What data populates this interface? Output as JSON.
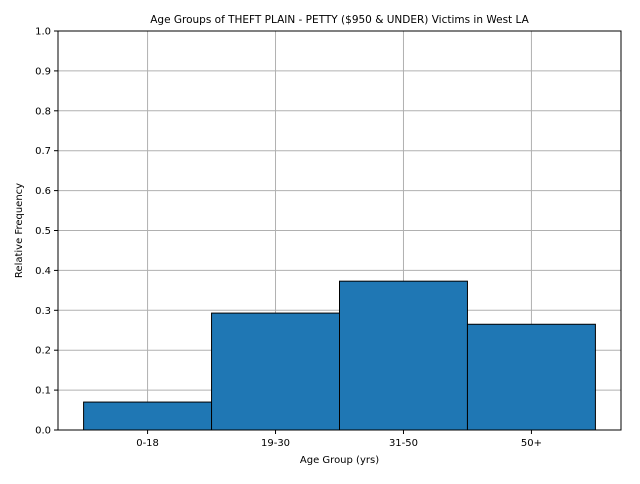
{
  "chart_data": {
    "type": "bar",
    "title": "Age Groups of THEFT PLAIN - PETTY ($950 & UNDER) Victims in West LA",
    "xlabel": "Age Group (yrs)",
    "ylabel": "Relative Frequency",
    "categories": [
      "0-18",
      "19-30",
      "31-50",
      "50+"
    ],
    "values": [
      0.07,
      0.293,
      0.373,
      0.265
    ],
    "ylim": [
      0,
      1.0
    ],
    "yticks": [
      "0.0",
      "0.1",
      "0.2",
      "0.3",
      "0.4",
      "0.5",
      "0.6",
      "0.7",
      "0.8",
      "0.9",
      "1.0"
    ],
    "grid": true,
    "legend": "none",
    "colors": {
      "bar_fill": "#1f77b4",
      "bar_edge": "#000000",
      "grid": "#b0b0b0"
    }
  }
}
